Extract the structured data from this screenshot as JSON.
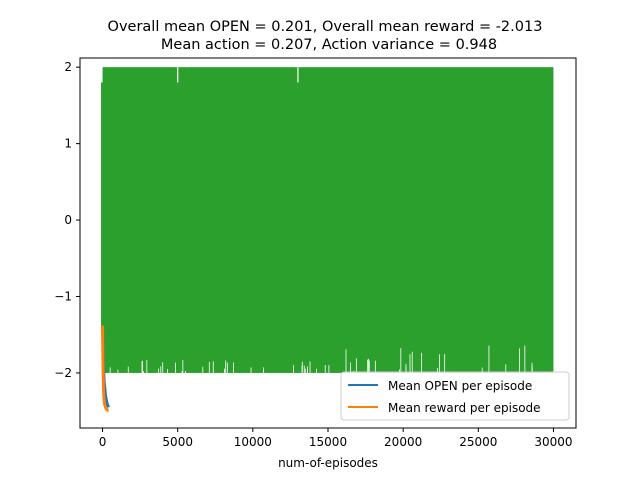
{
  "chart_data": {
    "type": "line",
    "title": [
      "Overall mean OPEN = 0.201, Overall mean reward = -2.013",
      "Mean action = 0.207, Action variance = 0.948"
    ],
    "xlabel": "num-of-episodes",
    "ylabel": "",
    "xlim": [
      -1500,
      31500
    ],
    "ylim": [
      -2.72,
      2.12
    ],
    "xticks": [
      0,
      5000,
      10000,
      15000,
      20000,
      25000,
      30000
    ],
    "xtick_labels": [
      "0",
      "5000",
      "10000",
      "15000",
      "20000",
      "25000",
      "30000"
    ],
    "yticks": [
      -2,
      -1,
      0,
      1,
      2
    ],
    "ytick_labels": [
      "−2",
      "−1",
      "0",
      "1",
      "2"
    ],
    "grid": false,
    "legend_position": "lower right",
    "series": [
      {
        "name": "Mean OPEN per episode",
        "color": "#1f77b4",
        "x": [
          0,
          50,
          100,
          200,
          300,
          400
        ],
        "y": [
          -1.4,
          -1.8,
          -2.1,
          -2.3,
          -2.4,
          -2.45
        ]
      },
      {
        "name": "Mean reward per episode",
        "color": "#ff7f0e",
        "x": [
          0,
          30,
          60,
          100,
          150,
          200,
          250,
          300,
          350,
          400
        ],
        "y": [
          -1.38,
          -1.9,
          -2.2,
          -2.35,
          -2.42,
          -2.45,
          -2.47,
          -2.48,
          -2.49,
          -2.49
        ]
      },
      {
        "name": "",
        "color": "#2ca02c",
        "x": [
          0,
          30000
        ],
        "y_range": [
          -2.0,
          2.0
        ],
        "description_kind": "dense oscillation"
      }
    ]
  }
}
